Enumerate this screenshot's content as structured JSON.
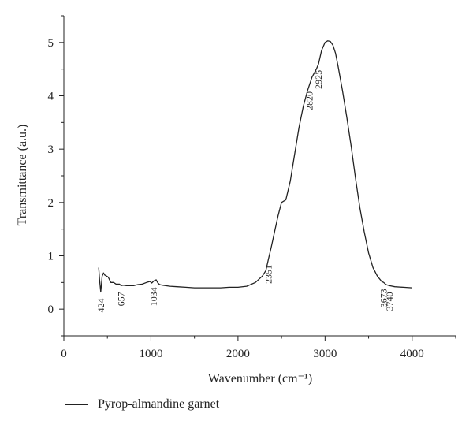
{
  "chart_data": {
    "type": "line",
    "xlabel": "Wavenumber (cm⁻¹)",
    "ylabel": "Transmittance (a.u.)",
    "xlim": [
      0,
      4500
    ],
    "ylim": [
      -0.5,
      5.5
    ],
    "xticks": [
      0,
      1000,
      2000,
      3000,
      4000
    ],
    "yticks": [
      0,
      1,
      2,
      3,
      4,
      5
    ],
    "grid": false,
    "legend_position": "bottom-left",
    "series": [
      {
        "name": "Pyrop-almandine garnet",
        "color": "#222222",
        "x": [
          400,
          410,
          424,
          440,
          455,
          470,
          490,
          510,
          540,
          570,
          600,
          640,
          657,
          680,
          720,
          760,
          800,
          850,
          900,
          950,
          990,
          1010,
          1034,
          1060,
          1080,
          1100,
          1130,
          1170,
          1220,
          1300,
          1400,
          1500,
          1600,
          1700,
          1800,
          1900,
          2000,
          2100,
          2200,
          2280,
          2320,
          2351,
          2380,
          2420,
          2460,
          2500,
          2550,
          2600,
          2650,
          2700,
          2750,
          2800,
          2850,
          2900,
          2925,
          2960,
          3000,
          3030,
          3060,
          3090,
          3120,
          3150,
          3200,
          3250,
          3300,
          3350,
          3400,
          3450,
          3500,
          3550,
          3600,
          3650,
          3673,
          3700,
          3740,
          3800,
          3900,
          4000
        ],
        "y": [
          0.78,
          0.55,
          0.32,
          0.62,
          0.68,
          0.64,
          0.62,
          0.6,
          0.5,
          0.5,
          0.47,
          0.47,
          0.44,
          0.45,
          0.44,
          0.44,
          0.44,
          0.46,
          0.47,
          0.5,
          0.52,
          0.49,
          0.53,
          0.55,
          0.49,
          0.46,
          0.45,
          0.44,
          0.43,
          0.42,
          0.41,
          0.4,
          0.4,
          0.4,
          0.4,
          0.41,
          0.41,
          0.43,
          0.5,
          0.62,
          0.72,
          0.95,
          1.15,
          1.45,
          1.75,
          2.0,
          2.05,
          2.4,
          2.9,
          3.4,
          3.8,
          4.1,
          4.35,
          4.5,
          4.6,
          4.85,
          5.0,
          5.03,
          5.02,
          4.95,
          4.8,
          4.55,
          4.1,
          3.6,
          3.05,
          2.45,
          1.9,
          1.45,
          1.05,
          0.78,
          0.62,
          0.52,
          0.5,
          0.46,
          0.44,
          0.42,
          0.41,
          0.4
        ]
      }
    ],
    "annotations": [
      {
        "text": "424",
        "x": 424
      },
      {
        "text": "657",
        "x": 657
      },
      {
        "text": "1034",
        "x": 1034
      },
      {
        "text": "2351",
        "x": 2351
      },
      {
        "text": "2820",
        "x": 2820
      },
      {
        "text": "2925",
        "x": 2925
      },
      {
        "text": "3673",
        "x": 3673
      },
      {
        "text": "3740",
        "x": 3740
      }
    ]
  }
}
